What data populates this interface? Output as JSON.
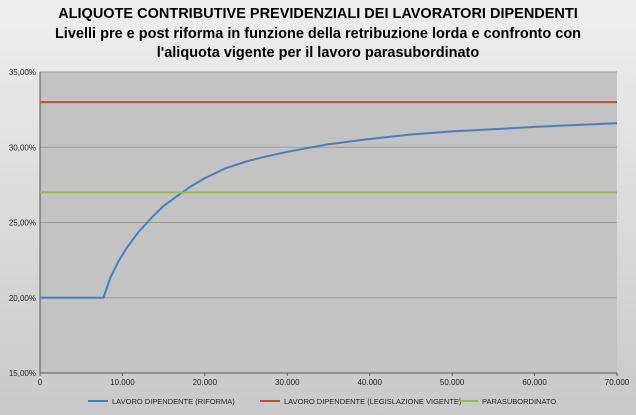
{
  "chart_data": {
    "type": "line",
    "title_lines": [
      "ALIQUOTE CONTRIBUTIVE PREVIDENZIALI DEI LAVORATORI DIPENDENTI",
      "Livelli pre e post riforma in funzione della retribuzione lorda e confronto con",
      "l'aliquota vigente per il lavoro parasubordinato"
    ],
    "xlim": [
      0,
      70000
    ],
    "ylim": [
      15,
      35
    ],
    "x_ticks": [
      0,
      10000,
      20000,
      30000,
      40000,
      50000,
      60000,
      70000
    ],
    "x_tick_labels": [
      "0",
      "10.000",
      "20.000",
      "30.000",
      "40.000",
      "50.000",
      "60.000",
      "70.000"
    ],
    "y_ticks": [
      15,
      20,
      25,
      30,
      35
    ],
    "y_tick_labels": [
      "15,00%",
      "20,00%",
      "25,00%",
      "30,00%",
      "35,00%"
    ],
    "grid": true,
    "legend_position": "bottom",
    "series": [
      {
        "name": "LAVORO DIPENDENTE (RIFORMA)",
        "color": "#4a7ebb",
        "x": [
          0,
          2000,
          4000,
          6000,
          7700,
          8500,
          9500,
          10500,
          12000,
          13500,
          15000,
          16500,
          18000,
          20000,
          22500,
          25000,
          27500,
          30000,
          35000,
          40000,
          45000,
          50000,
          55000,
          60000,
          65000,
          70000
        ],
        "y": [
          20,
          20,
          20,
          20,
          20,
          21.3,
          22.4,
          23.3,
          24.4,
          25.3,
          26.1,
          26.7,
          27.3,
          27.95,
          28.6,
          29.05,
          29.4,
          29.7,
          30.2,
          30.55,
          30.85,
          31.05,
          31.2,
          31.35,
          31.48,
          31.6
        ]
      },
      {
        "name": "LAVORO DIPENDENTE (LEGISLAZIONE VIGENTE)",
        "color": "#be4b48",
        "x": [
          0,
          70000
        ],
        "y": [
          33,
          33
        ]
      },
      {
        "name": "PARASUBORDINATO",
        "color": "#98b954",
        "x": [
          0,
          70000
        ],
        "y": [
          27,
          27
        ]
      }
    ]
  }
}
